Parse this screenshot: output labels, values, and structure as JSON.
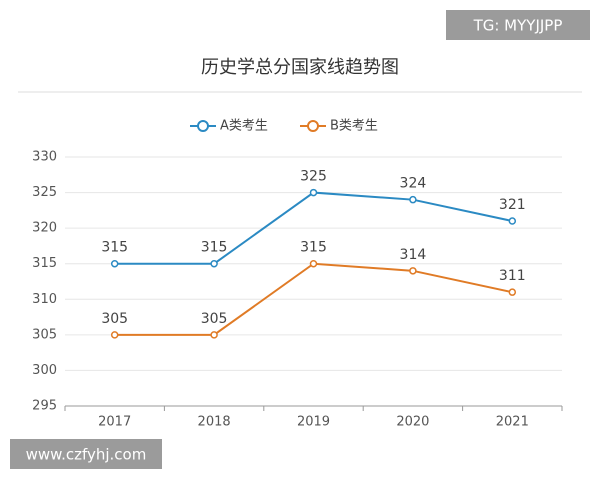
{
  "chart_data": {
    "type": "line",
    "title": "历史学总分国家线趋势图",
    "categories": [
      "2017",
      "2018",
      "2019",
      "2020",
      "2021"
    ],
    "series": [
      {
        "name": "A类考生",
        "color": "#2b8ac3",
        "values": [
          315,
          315,
          325,
          324,
          321
        ]
      },
      {
        "name": "B类考生",
        "color": "#e07b26",
        "values": [
          305,
          305,
          315,
          314,
          311
        ]
      }
    ],
    "ylim": [
      295,
      330
    ],
    "yticks": [
      295,
      300,
      305,
      310,
      315,
      320,
      325,
      330
    ],
    "grid": true,
    "legend": "top"
  },
  "watermarks": {
    "top": "TG: MYYJJPP",
    "bottom": "www.czfyhj.com"
  }
}
